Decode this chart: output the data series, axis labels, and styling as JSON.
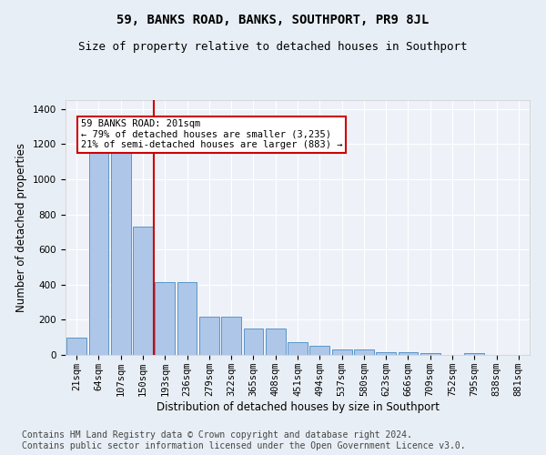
{
  "title": "59, BANKS ROAD, BANKS, SOUTHPORT, PR9 8JL",
  "subtitle": "Size of property relative to detached houses in Southport",
  "xlabel": "Distribution of detached houses by size in Southport",
  "ylabel": "Number of detached properties",
  "categories": [
    "21sqm",
    "64sqm",
    "107sqm",
    "150sqm",
    "193sqm",
    "236sqm",
    "279sqm",
    "322sqm",
    "365sqm",
    "408sqm",
    "451sqm",
    "494sqm",
    "537sqm",
    "580sqm",
    "623sqm",
    "666sqm",
    "709sqm",
    "752sqm",
    "795sqm",
    "838sqm",
    "881sqm"
  ],
  "values": [
    100,
    1150,
    1150,
    730,
    415,
    415,
    215,
    215,
    150,
    150,
    70,
    50,
    30,
    30,
    15,
    15,
    10,
    0,
    10,
    0,
    0
  ],
  "bar_color": "#aec6e8",
  "bar_edge_color": "#5a96c8",
  "red_line_x": 3.5,
  "annotation_text": "59 BANKS ROAD: 201sqm\n← 79% of detached houses are smaller (3,235)\n21% of semi-detached houses are larger (883) →",
  "annotation_box_color": "#ffffff",
  "annotation_box_edge": "#cc0000",
  "ylim": [
    0,
    1450
  ],
  "yticks": [
    0,
    200,
    400,
    600,
    800,
    1000,
    1200,
    1400
  ],
  "bg_color": "#e8eef5",
  "plot_bg_color": "#eef2f8",
  "footer": "Contains HM Land Registry data © Crown copyright and database right 2024.\nContains public sector information licensed under the Open Government Licence v3.0.",
  "title_fontsize": 10,
  "subtitle_fontsize": 9,
  "label_fontsize": 8.5,
  "tick_fontsize": 7.5,
  "footer_fontsize": 7,
  "ann_fontsize": 7.5
}
